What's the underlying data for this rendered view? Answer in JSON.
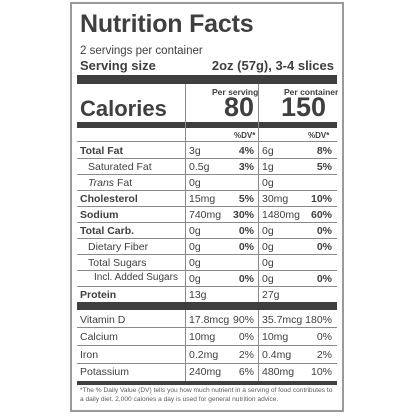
{
  "title": "Nutrition Facts",
  "servings": "2 servings per container",
  "serving_size": {
    "label": "Serving size",
    "value": "2oz (57g), 3-4 slices"
  },
  "calories": {
    "label": "Calories",
    "per_serving_label": "Per serving",
    "per_container_label": "Per container",
    "per_serving": "80",
    "per_container": "150"
  },
  "dv_label": "%DV*",
  "nutrients": [
    {
      "label": "Total Fat",
      "serv_amt": "3g",
      "serv_pct": "4%",
      "cont_amt": "6g",
      "cont_pct": "8%"
    },
    {
      "label": "Saturated Fat",
      "serv_amt": "0.5g",
      "serv_pct": "3%",
      "cont_amt": "1g",
      "cont_pct": "5%"
    },
    {
      "label": "Trans",
      "label_suffix": " Fat",
      "serv_amt": "0g",
      "serv_pct": "",
      "cont_amt": "0g",
      "cont_pct": ""
    },
    {
      "label": "Cholesterol",
      "serv_amt": "15mg",
      "serv_pct": "5%",
      "cont_amt": "30mg",
      "cont_pct": "10%"
    },
    {
      "label": "Sodium",
      "serv_amt": "740mg",
      "serv_pct": "30%",
      "cont_amt": "1480mg",
      "cont_pct": "60%"
    },
    {
      "label": "Total Carb.",
      "serv_amt": "0g",
      "serv_pct": "0%",
      "cont_amt": "0g",
      "cont_pct": "0%"
    },
    {
      "label": "Dietary Fiber",
      "serv_amt": "0g",
      "serv_pct": "0%",
      "cont_amt": "0g",
      "cont_pct": "0%"
    },
    {
      "label": "Total Sugars",
      "serv_amt": "0g",
      "serv_pct": "",
      "cont_amt": "0g",
      "cont_pct": ""
    },
    {
      "label": "Incl. Added Sugars",
      "serv_amt": "0g",
      "serv_pct": "0%",
      "cont_amt": "0g",
      "cont_pct": "0%"
    },
    {
      "label": "Protein",
      "serv_amt": "13g",
      "serv_pct": "",
      "cont_amt": "27g",
      "cont_pct": ""
    }
  ],
  "vitamins": [
    {
      "label": "Vitamin D",
      "serv_amt": "17.8mcg",
      "serv_pct": "90%",
      "cont_amt": "35.7mcg",
      "cont_pct": "180%"
    },
    {
      "label": "Calcium",
      "serv_amt": "10mg",
      "serv_pct": "0%",
      "cont_amt": "10mg",
      "cont_pct": "0%"
    },
    {
      "label": "Iron",
      "serv_amt": "0.2mg",
      "serv_pct": "2%",
      "cont_amt": "0.4mg",
      "cont_pct": "2%"
    },
    {
      "label": "Potassium",
      "serv_amt": "240mg",
      "serv_pct": "6%",
      "cont_amt": "480mg",
      "cont_pct": "10%"
    }
  ],
  "footnote": "*The % Daily Value (DV) tells you how much nutrient in a serving of food contributes to a daily diet. 2,000 calories a day is used for general nutrition advice.",
  "colors": {
    "ink": "#3f3f3f",
    "border": "#9a9a9a",
    "rule": "#8a8a8a"
  }
}
